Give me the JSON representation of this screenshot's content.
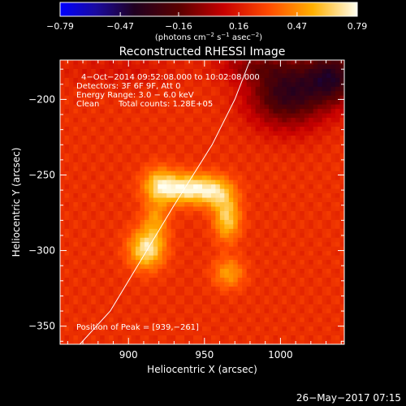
{
  "chart_data": {
    "type": "heatmap",
    "title": "Reconstructed RHESSI Image",
    "xlabel": "Heliocentric X (arcsec)",
    "ylabel": "Heliocentric Y (arcsec)",
    "xlim": [
      855,
      1042
    ],
    "ylim": [
      -362,
      -174
    ],
    "x_ticks": [
      {
        "value": 900,
        "label": "900"
      },
      {
        "value": 950,
        "label": "950"
      },
      {
        "value": 1000,
        "label": "1000"
      }
    ],
    "y_ticks": [
      {
        "value": -200,
        "label": "−200"
      },
      {
        "value": -250,
        "label": "−250"
      },
      {
        "value": -300,
        "label": "−300"
      },
      {
        "value": -350,
        "label": "−350"
      }
    ],
    "colorbar": {
      "colormap": "red-temperature",
      "range": [
        -0.79,
        0.79
      ],
      "tick_labels": [
        "−0.79",
        "−0.47",
        "−0.16",
        "0.16",
        "0.47",
        "0.79"
      ],
      "unit_label_parts": [
        "(photons cm",
        "−2",
        " s",
        "−1",
        " asec",
        "−2",
        ")"
      ]
    },
    "annotations": [
      "4−Oct−2014 09:52:08.000 to 10:02:08.000",
      "Detectors: 3F 6F 9F, Att 0",
      "Energy Range: 3.0 − 6.0 keV",
      "Clean",
      "Total counts: 1.28E+05"
    ],
    "peak_label": "Position of Peak = [939,−261]",
    "peak": {
      "x": 939,
      "y": -261
    },
    "background_level": 0.22,
    "sources": [
      {
        "x": 938,
        "y": -259,
        "amp": 0.55,
        "sx": 14,
        "sy": 7
      },
      {
        "x": 920,
        "y": -256,
        "amp": 0.3,
        "sx": 7,
        "sy": 8
      },
      {
        "x": 958,
        "y": -262,
        "amp": 0.3,
        "sx": 8,
        "sy": 7
      },
      {
        "x": 965,
        "y": -279,
        "amp": 0.42,
        "sx": 6,
        "sy": 10
      },
      {
        "x": 912,
        "y": -299,
        "amp": 0.5,
        "sx": 8,
        "sy": 9
      },
      {
        "x": 918,
        "y": -280,
        "amp": 0.25,
        "sx": 6,
        "sy": 9
      },
      {
        "x": 966,
        "y": -315,
        "amp": 0.28,
        "sx": 7,
        "sy": 7
      },
      {
        "x": 1005,
        "y": -195,
        "amp": -0.55,
        "sx": 18,
        "sy": 16
      },
      {
        "x": 1035,
        "y": -185,
        "amp": -0.5,
        "sx": 12,
        "sy": 12
      },
      {
        "x": 980,
        "y": -178,
        "amp": -0.2,
        "sx": 15,
        "sy": 6
      },
      {
        "x": 895,
        "y": -180,
        "amp": -0.08,
        "sx": 30,
        "sy": 8
      }
    ],
    "limb_curve": {
      "x": [
        868,
        888,
        912,
        930,
        955,
        970,
        980
      ],
      "y": [
        -362,
        -340,
        -300,
        -270,
        -230,
        -200,
        -174
      ]
    },
    "footer": "26−May−2017 07:15"
  }
}
